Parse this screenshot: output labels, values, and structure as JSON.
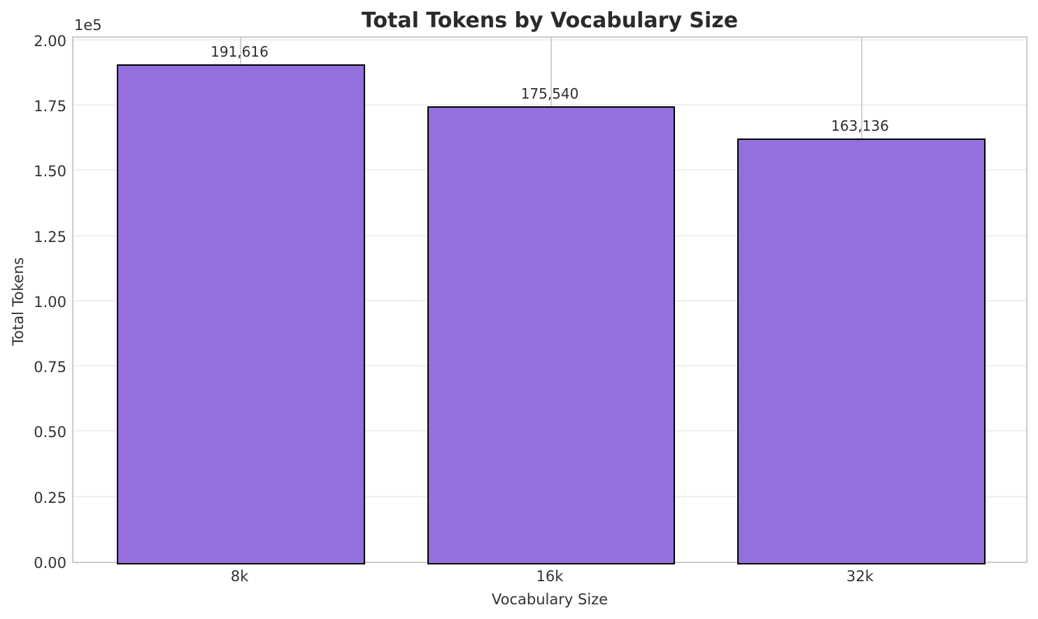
{
  "figure": {
    "background": "#ffffff"
  },
  "chart_data": {
    "type": "bar",
    "title": "Total Tokens by Vocabulary Size",
    "xlabel": "Vocabulary Size",
    "ylabel": "Total Tokens",
    "categories": [
      "8k",
      "16k",
      "32k"
    ],
    "values": [
      191616,
      175540,
      163136
    ],
    "value_labels": [
      "191,616",
      "175,540",
      "163,136"
    ],
    "ylim": [
      0,
      200000
    ],
    "yticks": [
      0,
      25000,
      50000,
      75000,
      100000,
      125000,
      150000,
      175000,
      200000
    ],
    "ytick_labels": [
      "0.00",
      "0.25",
      "0.50",
      "0.75",
      "1.00",
      "1.25",
      "1.50",
      "1.75",
      "2.00"
    ],
    "offset_text": "1e5",
    "grid": true,
    "legend": "none",
    "bar_color": "#9370DB",
    "bar_edge_color": "#000000",
    "title_color": "#2b2b2b",
    "tick_color": "#333333"
  }
}
